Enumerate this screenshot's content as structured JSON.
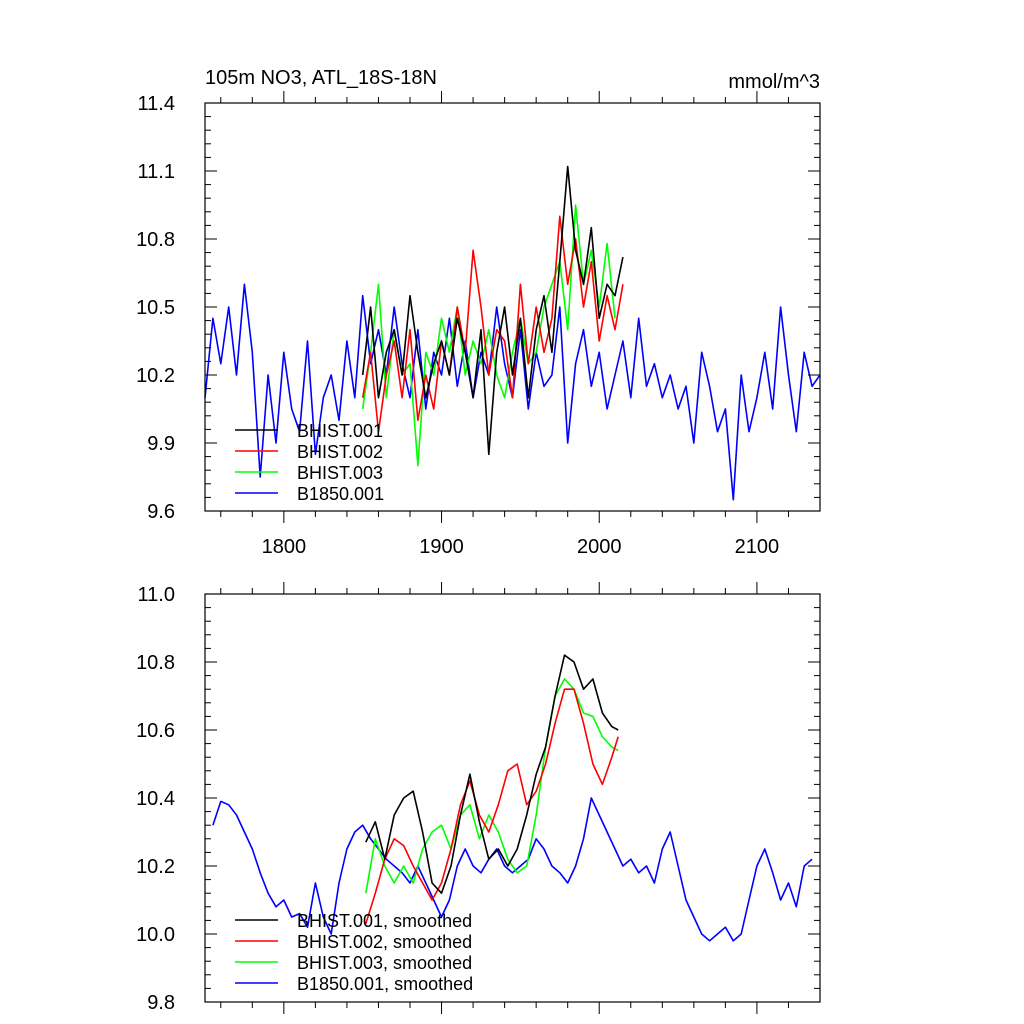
{
  "chart_data": [
    {
      "type": "line",
      "title": "105m NO3, ATL_18S-18N",
      "units": "mmol/m^3",
      "xlim": [
        1750,
        2140
      ],
      "ylim": [
        9.6,
        11.4
      ],
      "x_ticks": [
        1800,
        1900,
        2000,
        2100
      ],
      "x_tick_labels": [
        "1800",
        "1900",
        "2000",
        "2100"
      ],
      "y_ticks": [
        9.6,
        9.9,
        10.2,
        10.5,
        10.8,
        11.1,
        11.4
      ],
      "y_tick_labels": [
        "9.6",
        "9.9",
        "10.2",
        "10.5",
        "10.8",
        "11.1",
        "11.4"
      ],
      "legend_position": "bottom-left",
      "series": [
        {
          "name": "BHIST.001",
          "color": "#000000",
          "x": [
            1850,
            1855,
            1860,
            1865,
            1870,
            1875,
            1880,
            1885,
            1890,
            1895,
            1900,
            1905,
            1910,
            1915,
            1920,
            1925,
            1930,
            1935,
            1940,
            1945,
            1950,
            1955,
            1960,
            1965,
            1970,
            1975,
            1980,
            1985,
            1990,
            1995,
            2000,
            2005,
            2010,
            2015
          ],
          "y": [
            10.2,
            10.5,
            10.1,
            10.3,
            10.4,
            10.2,
            10.55,
            10.3,
            10.1,
            10.25,
            10.35,
            10.2,
            10.45,
            10.3,
            10.1,
            10.4,
            9.85,
            10.3,
            10.5,
            10.2,
            10.45,
            10.1,
            10.4,
            10.55,
            10.3,
            10.7,
            11.12,
            10.75,
            10.6,
            10.85,
            10.45,
            10.6,
            10.55,
            10.72
          ]
        },
        {
          "name": "BHIST.002",
          "color": "#ff0000",
          "x": [
            1850,
            1855,
            1860,
            1865,
            1870,
            1875,
            1880,
            1885,
            1890,
            1895,
            1900,
            1905,
            1910,
            1915,
            1920,
            1925,
            1930,
            1935,
            1940,
            1945,
            1950,
            1955,
            1960,
            1965,
            1970,
            1975,
            1980,
            1985,
            1990,
            1995,
            2000,
            2005,
            2010,
            2015
          ],
          "y": [
            10.1,
            10.3,
            9.95,
            10.2,
            10.35,
            10.1,
            10.4,
            10.0,
            10.2,
            10.05,
            10.35,
            10.2,
            10.5,
            10.3,
            10.75,
            10.5,
            10.2,
            10.4,
            10.35,
            10.1,
            10.6,
            10.25,
            10.5,
            10.3,
            10.45,
            10.9,
            10.6,
            10.8,
            10.5,
            10.7,
            10.35,
            10.55,
            10.4,
            10.6
          ]
        },
        {
          "name": "BHIST.003",
          "color": "#00ff00",
          "x": [
            1850,
            1855,
            1860,
            1865,
            1870,
            1875,
            1880,
            1885,
            1890,
            1895,
            1900,
            1905,
            1910,
            1915,
            1920,
            1925,
            1930,
            1935,
            1940,
            1945,
            1950,
            1955,
            1960,
            1965,
            1970,
            1975,
            1980,
            1985,
            1990,
            1995,
            2000,
            2005,
            2010
          ],
          "y": [
            10.05,
            10.3,
            10.6,
            10.1,
            10.4,
            10.2,
            10.25,
            9.8,
            10.3,
            10.2,
            10.45,
            10.3,
            10.5,
            10.2,
            10.35,
            10.25,
            10.4,
            10.2,
            10.1,
            10.3,
            10.45,
            10.25,
            10.3,
            10.5,
            10.6,
            10.7,
            10.4,
            10.95,
            10.6,
            10.75,
            10.5,
            10.78,
            10.45
          ]
        },
        {
          "name": "B1850.001",
          "color": "#0000ff",
          "x": [
            1750,
            1755,
            1760,
            1765,
            1770,
            1775,
            1780,
            1785,
            1790,
            1795,
            1800,
            1805,
            1810,
            1815,
            1820,
            1825,
            1830,
            1835,
            1840,
            1845,
            1850,
            1855,
            1860,
            1865,
            1870,
            1875,
            1880,
            1885,
            1890,
            1895,
            1900,
            1905,
            1910,
            1915,
            1920,
            1925,
            1930,
            1935,
            1940,
            1945,
            1950,
            1955,
            1960,
            1965,
            1970,
            1975,
            1980,
            1985,
            1990,
            1995,
            2000,
            2005,
            2010,
            2015,
            2020,
            2025,
            2030,
            2035,
            2040,
            2045,
            2050,
            2055,
            2060,
            2065,
            2070,
            2075,
            2080,
            2085,
            2090,
            2095,
            2100,
            2105,
            2110,
            2115,
            2120,
            2125,
            2130,
            2135,
            2140
          ],
          "y": [
            10.1,
            10.45,
            10.25,
            10.5,
            10.2,
            10.6,
            10.3,
            9.75,
            10.2,
            9.9,
            10.3,
            10.05,
            9.95,
            10.35,
            9.85,
            10.1,
            10.2,
            10.0,
            10.35,
            10.1,
            10.55,
            10.25,
            10.4,
            10.2,
            10.5,
            10.25,
            10.1,
            10.4,
            10.05,
            10.3,
            10.2,
            10.45,
            10.15,
            10.35,
            10.1,
            10.3,
            10.2,
            10.5,
            10.25,
            10.1,
            10.4,
            10.05,
            10.3,
            10.15,
            10.2,
            10.5,
            9.9,
            10.25,
            10.4,
            10.15,
            10.3,
            10.05,
            10.2,
            10.35,
            10.1,
            10.45,
            10.15,
            10.25,
            10.1,
            10.2,
            10.05,
            10.15,
            9.9,
            10.3,
            10.15,
            9.95,
            10.05,
            9.65,
            10.2,
            9.95,
            10.1,
            10.3,
            10.05,
            10.5,
            10.2,
            9.95,
            10.3,
            10.15,
            10.2
          ]
        }
      ]
    },
    {
      "type": "line",
      "xlim": [
        1750,
        2140
      ],
      "ylim": [
        9.8,
        11.0
      ],
      "x_ticks": [
        1800,
        1900,
        2000,
        2100
      ],
      "y_ticks": [
        9.8,
        10.0,
        10.2,
        10.4,
        10.6,
        10.8,
        11.0
      ],
      "y_tick_labels": [
        "9.8",
        "10.0",
        "10.2",
        "10.4",
        "10.6",
        "10.8",
        "11.0"
      ],
      "legend_position": "bottom-left",
      "series": [
        {
          "name": "BHIST.001, smoothed",
          "color": "#000000",
          "x": [
            1852,
            1858,
            1864,
            1870,
            1876,
            1882,
            1888,
            1894,
            1900,
            1906,
            1912,
            1918,
            1924,
            1930,
            1936,
            1942,
            1948,
            1954,
            1960,
            1966,
            1972,
            1978,
            1984,
            1990,
            1996,
            2002,
            2008,
            2012
          ],
          "y": [
            10.27,
            10.33,
            10.22,
            10.35,
            10.4,
            10.42,
            10.3,
            10.15,
            10.12,
            10.2,
            10.35,
            10.47,
            10.33,
            10.22,
            10.25,
            10.2,
            10.25,
            10.35,
            10.47,
            10.55,
            10.7,
            10.82,
            10.8,
            10.72,
            10.75,
            10.65,
            10.61,
            10.6
          ]
        },
        {
          "name": "BHIST.002, smoothed",
          "color": "#ff0000",
          "x": [
            1852,
            1858,
            1864,
            1870,
            1876,
            1882,
            1888,
            1894,
            1900,
            1906,
            1912,
            1918,
            1924,
            1930,
            1936,
            1942,
            1948,
            1954,
            1960,
            1966,
            1972,
            1978,
            1984,
            1990,
            1996,
            2002,
            2008,
            2012
          ],
          "y": [
            10.03,
            10.12,
            10.22,
            10.28,
            10.26,
            10.2,
            10.15,
            10.1,
            10.15,
            10.25,
            10.38,
            10.45,
            10.35,
            10.3,
            10.38,
            10.48,
            10.5,
            10.38,
            10.42,
            10.5,
            10.62,
            10.72,
            10.72,
            10.62,
            10.5,
            10.44,
            10.52,
            10.58
          ]
        },
        {
          "name": "BHIST.003, smoothed",
          "color": "#00ff00",
          "x": [
            1852,
            1858,
            1864,
            1870,
            1876,
            1882,
            1888,
            1894,
            1900,
            1906,
            1912,
            1918,
            1924,
            1930,
            1936,
            1942,
            1948,
            1954,
            1960,
            1966,
            1972,
            1978,
            1984,
            1990,
            1996,
            2002,
            2008,
            2012
          ],
          "y": [
            10.12,
            10.28,
            10.2,
            10.15,
            10.2,
            10.15,
            10.25,
            10.3,
            10.32,
            10.25,
            10.35,
            10.38,
            10.28,
            10.35,
            10.3,
            10.22,
            10.18,
            10.2,
            10.35,
            10.55,
            10.7,
            10.75,
            10.72,
            10.65,
            10.64,
            10.58,
            10.55,
            10.54
          ]
        },
        {
          "name": "B1850.001, smoothed",
          "color": "#0000ff",
          "x": [
            1755,
            1760,
            1765,
            1770,
            1775,
            1780,
            1785,
            1790,
            1795,
            1800,
            1805,
            1810,
            1815,
            1820,
            1825,
            1830,
            1835,
            1840,
            1845,
            1850,
            1855,
            1860,
            1865,
            1870,
            1875,
            1880,
            1885,
            1890,
            1895,
            1900,
            1905,
            1910,
            1915,
            1920,
            1925,
            1930,
            1935,
            1940,
            1945,
            1950,
            1955,
            1960,
            1965,
            1970,
            1975,
            1980,
            1985,
            1990,
            1995,
            2000,
            2005,
            2010,
            2015,
            2020,
            2025,
            2030,
            2035,
            2040,
            2045,
            2050,
            2055,
            2060,
            2065,
            2070,
            2075,
            2080,
            2085,
            2090,
            2095,
            2100,
            2105,
            2110,
            2115,
            2120,
            2125,
            2130,
            2135
          ],
          "y": [
            10.32,
            10.39,
            10.38,
            10.35,
            10.3,
            10.25,
            10.18,
            10.12,
            10.08,
            10.1,
            10.05,
            10.06,
            10.02,
            10.15,
            10.05,
            10.0,
            10.15,
            10.25,
            10.3,
            10.32,
            10.28,
            10.25,
            10.22,
            10.2,
            10.18,
            10.15,
            10.2,
            10.15,
            10.1,
            10.05,
            10.1,
            10.2,
            10.25,
            10.2,
            10.18,
            10.22,
            10.25,
            10.2,
            10.18,
            10.2,
            10.22,
            10.28,
            10.25,
            10.2,
            10.18,
            10.15,
            10.2,
            10.28,
            10.4,
            10.35,
            10.3,
            10.25,
            10.2,
            10.22,
            10.18,
            10.2,
            10.15,
            10.25,
            10.3,
            10.2,
            10.1,
            10.05,
            10.0,
            9.98,
            10.0,
            10.02,
            9.98,
            10.0,
            10.1,
            10.2,
            10.25,
            10.18,
            10.1,
            10.15,
            10.08,
            10.2,
            10.22
          ]
        }
      ]
    }
  ]
}
